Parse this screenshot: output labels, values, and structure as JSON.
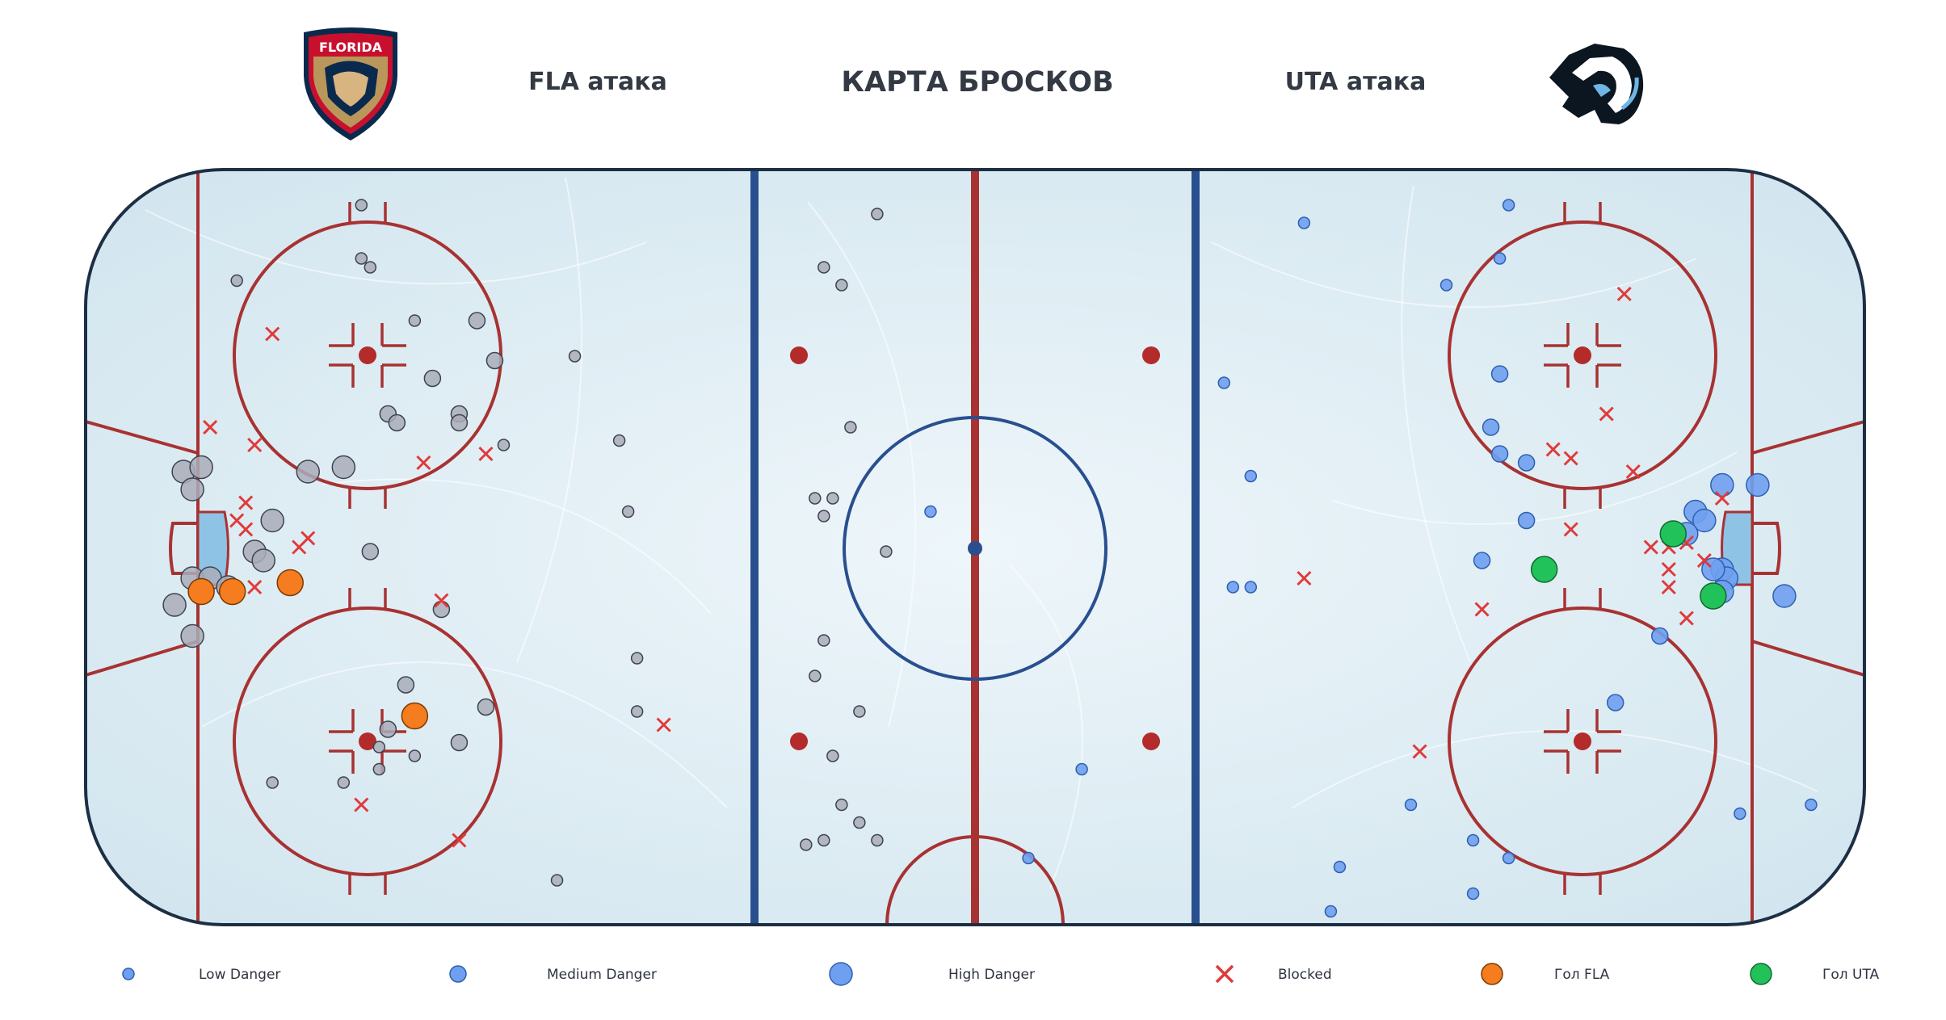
{
  "header": {
    "title": "КАРТА БРОСКОВ",
    "left_label": "FLA атака",
    "right_label": "UTA атака",
    "left_logo_text": "FLORIDA"
  },
  "legend": {
    "low": "Low Danger",
    "medium": "Medium Danger",
    "high": "High Danger",
    "blocked": "Blocked",
    "goal_fla": "Гол FLA",
    "goal_uta": "Гол UTA"
  },
  "colors": {
    "fla_shot": "#a9adb8",
    "uta_shot": "#6fa0f0",
    "blocked": "#e03a3a",
    "goal_fla": "#f57c1f",
    "goal_uta": "#22c25a",
    "rink_red": "#a83232",
    "rink_blue": "#2a4f8f",
    "boards": "#1d2f45"
  },
  "chart_data": {
    "type": "scatter",
    "title": "КАРТА БРОСКОВ",
    "x_range": [
      -100,
      100
    ],
    "y_range": [
      -42.5,
      42.5
    ],
    "units": "ft",
    "series": [
      {
        "name": "FLA",
        "points": [
          {
            "x": -69,
            "y": 38.5,
            "d": "low"
          },
          {
            "x": -69,
            "y": 32.5,
            "d": "low"
          },
          {
            "x": -68,
            "y": 31.5,
            "d": "low"
          },
          {
            "x": -83,
            "y": 30,
            "d": "low"
          },
          {
            "x": -11,
            "y": 37.5,
            "d": "low"
          },
          {
            "x": -17,
            "y": 31.5,
            "d": "low"
          },
          {
            "x": -15,
            "y": 29.5,
            "d": "low"
          },
          {
            "x": -63,
            "y": 25.5,
            "d": "low"
          },
          {
            "x": -56,
            "y": 25.5,
            "d": "medium"
          },
          {
            "x": -54,
            "y": 21,
            "d": "medium"
          },
          {
            "x": -61,
            "y": 19,
            "d": "medium"
          },
          {
            "x": -45,
            "y": 21.5,
            "d": "low"
          },
          {
            "x": -66,
            "y": 15,
            "d": "medium"
          },
          {
            "x": -65,
            "y": 14,
            "d": "medium"
          },
          {
            "x": -58,
            "y": 15,
            "d": "medium"
          },
          {
            "x": -58,
            "y": 14,
            "d": "medium"
          },
          {
            "x": -40,
            "y": 12,
            "d": "low"
          },
          {
            "x": -14,
            "y": 13.5,
            "d": "low"
          },
          {
            "x": -53,
            "y": 11.5,
            "d": "low"
          },
          {
            "x": -89,
            "y": 8.5,
            "d": "high"
          },
          {
            "x": -87,
            "y": 9,
            "d": "high"
          },
          {
            "x": -88,
            "y": 6.5,
            "d": "high"
          },
          {
            "x": -71,
            "y": 9,
            "d": "high"
          },
          {
            "x": -75,
            "y": 8.5,
            "d": "high"
          },
          {
            "x": -39,
            "y": 4,
            "d": "low"
          },
          {
            "x": -16,
            "y": 5.5,
            "d": "low"
          },
          {
            "x": -18,
            "y": 5.5,
            "d": "low"
          },
          {
            "x": -17,
            "y": 3.5,
            "d": "low"
          },
          {
            "x": -79,
            "y": 3,
            "d": "high"
          },
          {
            "x": -68,
            "y": -0.5,
            "d": "medium"
          },
          {
            "x": -81,
            "y": -0.5,
            "d": "high"
          },
          {
            "x": -80,
            "y": -1.5,
            "d": "high"
          },
          {
            "x": -10,
            "y": -0.5,
            "d": "low"
          },
          {
            "x": -88,
            "y": -3.5,
            "d": "high"
          },
          {
            "x": -86,
            "y": -3.5,
            "d": "high"
          },
          {
            "x": -84,
            "y": -4.5,
            "d": "high"
          },
          {
            "x": -90,
            "y": -6.5,
            "d": "high"
          },
          {
            "x": -60,
            "y": -7,
            "d": "medium"
          },
          {
            "x": -88,
            "y": -10,
            "d": "high"
          },
          {
            "x": -17,
            "y": -10.5,
            "d": "low"
          },
          {
            "x": -38,
            "y": -12.5,
            "d": "low"
          },
          {
            "x": -64,
            "y": -15.5,
            "d": "medium"
          },
          {
            "x": -18,
            "y": -14.5,
            "d": "low"
          },
          {
            "x": -55,
            "y": -18,
            "d": "medium"
          },
          {
            "x": -38,
            "y": -18.5,
            "d": "low"
          },
          {
            "x": -13,
            "y": -18.5,
            "d": "low"
          },
          {
            "x": -66,
            "y": -20.5,
            "d": "medium"
          },
          {
            "x": -58,
            "y": -22,
            "d": "medium"
          },
          {
            "x": -67,
            "y": -22.5,
            "d": "low"
          },
          {
            "x": -16,
            "y": -23.5,
            "d": "low"
          },
          {
            "x": -63,
            "y": -23.5,
            "d": "low"
          },
          {
            "x": -67,
            "y": -25,
            "d": "low"
          },
          {
            "x": -79,
            "y": -26.5,
            "d": "low"
          },
          {
            "x": -71,
            "y": -26.5,
            "d": "low"
          },
          {
            "x": -15,
            "y": -29,
            "d": "low"
          },
          {
            "x": -13,
            "y": -31,
            "d": "low"
          },
          {
            "x": -17,
            "y": -33,
            "d": "low"
          },
          {
            "x": -11,
            "y": -33,
            "d": "low"
          },
          {
            "x": -19,
            "y": -33.5,
            "d": "low"
          },
          {
            "x": -47,
            "y": -37.5,
            "d": "low"
          }
        ]
      },
      {
        "name": "FLA blocked",
        "points": [
          {
            "x": -79,
            "y": 24
          },
          {
            "x": -86,
            "y": 13.5
          },
          {
            "x": -81,
            "y": 11.5
          },
          {
            "x": -62,
            "y": 9.5
          },
          {
            "x": -55,
            "y": 10.5
          },
          {
            "x": -82,
            "y": 5
          },
          {
            "x": -83,
            "y": 3
          },
          {
            "x": -82,
            "y": 2
          },
          {
            "x": -75,
            "y": 1
          },
          {
            "x": -76,
            "y": 0
          },
          {
            "x": -81,
            "y": -4.5
          },
          {
            "x": -60,
            "y": -6
          },
          {
            "x": -35,
            "y": -20
          },
          {
            "x": -69,
            "y": -29
          },
          {
            "x": -58,
            "y": -33
          }
        ]
      },
      {
        "name": "Гол FLA",
        "points": [
          {
            "x": -87,
            "y": -5
          },
          {
            "x": -83.5,
            "y": -5
          },
          {
            "x": -77,
            "y": -4
          },
          {
            "x": -63,
            "y": -19
          }
        ]
      },
      {
        "name": "UTA",
        "points": [
          {
            "x": 60,
            "y": 38.5,
            "d": "low"
          },
          {
            "x": 37,
            "y": 36.5,
            "d": "low"
          },
          {
            "x": 59,
            "y": 32.5,
            "d": "low"
          },
          {
            "x": 53,
            "y": 29.5,
            "d": "low"
          },
          {
            "x": 28,
            "y": 18.5,
            "d": "low"
          },
          {
            "x": 59,
            "y": 19.5,
            "d": "medium"
          },
          {
            "x": 58,
            "y": 13.5,
            "d": "medium"
          },
          {
            "x": 59,
            "y": 10.5,
            "d": "medium"
          },
          {
            "x": 62,
            "y": 9.5,
            "d": "medium"
          },
          {
            "x": 31,
            "y": 8,
            "d": "low"
          },
          {
            "x": 84,
            "y": 7,
            "d": "high"
          },
          {
            "x": 88,
            "y": 7,
            "d": "high"
          },
          {
            "x": 81,
            "y": 4,
            "d": "high"
          },
          {
            "x": 82,
            "y": 3,
            "d": "high"
          },
          {
            "x": -5,
            "y": 4,
            "d": "low"
          },
          {
            "x": 62,
            "y": 3,
            "d": "medium"
          },
          {
            "x": 80,
            "y": 1.5,
            "d": "high"
          },
          {
            "x": 57,
            "y": -1.5,
            "d": "medium"
          },
          {
            "x": 84,
            "y": -2.5,
            "d": "high"
          },
          {
            "x": 84.5,
            "y": -3.5,
            "d": "high"
          },
          {
            "x": 83,
            "y": -2.5,
            "d": "high"
          },
          {
            "x": 84,
            "y": -5,
            "d": "high"
          },
          {
            "x": 91,
            "y": -5.5,
            "d": "high"
          },
          {
            "x": 29,
            "y": -4.5,
            "d": "low"
          },
          {
            "x": 31,
            "y": -4.5,
            "d": "low"
          },
          {
            "x": 77,
            "y": -10,
            "d": "medium"
          },
          {
            "x": 72,
            "y": -17.5,
            "d": "medium"
          },
          {
            "x": 12,
            "y": -25,
            "d": "low"
          },
          {
            "x": 49,
            "y": -29,
            "d": "low"
          },
          {
            "x": 86,
            "y": -30,
            "d": "low"
          },
          {
            "x": 94,
            "y": -29,
            "d": "low"
          },
          {
            "x": 56,
            "y": -33,
            "d": "low"
          },
          {
            "x": 60,
            "y": -35,
            "d": "low"
          },
          {
            "x": 6,
            "y": -35,
            "d": "low"
          },
          {
            "x": 41,
            "y": -36,
            "d": "low"
          },
          {
            "x": 56,
            "y": -39,
            "d": "low"
          },
          {
            "x": 40,
            "y": -41,
            "d": "low"
          }
        ]
      },
      {
        "name": "UTA blocked",
        "points": [
          {
            "x": 73,
            "y": 28.5
          },
          {
            "x": 71,
            "y": 15
          },
          {
            "x": 65,
            "y": 11
          },
          {
            "x": 67,
            "y": 10
          },
          {
            "x": 74,
            "y": 8.5
          },
          {
            "x": 84,
            "y": 5.5
          },
          {
            "x": 67,
            "y": 2
          },
          {
            "x": 76,
            "y": 0
          },
          {
            "x": 78,
            "y": 0
          },
          {
            "x": 80,
            "y": 0.5
          },
          {
            "x": 82,
            "y": -1.5
          },
          {
            "x": 78,
            "y": -2.5
          },
          {
            "x": 78,
            "y": -4.5
          },
          {
            "x": 37,
            "y": -3.5
          },
          {
            "x": 57,
            "y": -7
          },
          {
            "x": 80,
            "y": -8
          },
          {
            "x": 50,
            "y": -23
          }
        ]
      },
      {
        "name": "Гол UTA",
        "points": [
          {
            "x": 78.5,
            "y": 1.5
          },
          {
            "x": 64,
            "y": -2.5
          },
          {
            "x": 83,
            "y": -5.5
          }
        ]
      }
    ]
  }
}
